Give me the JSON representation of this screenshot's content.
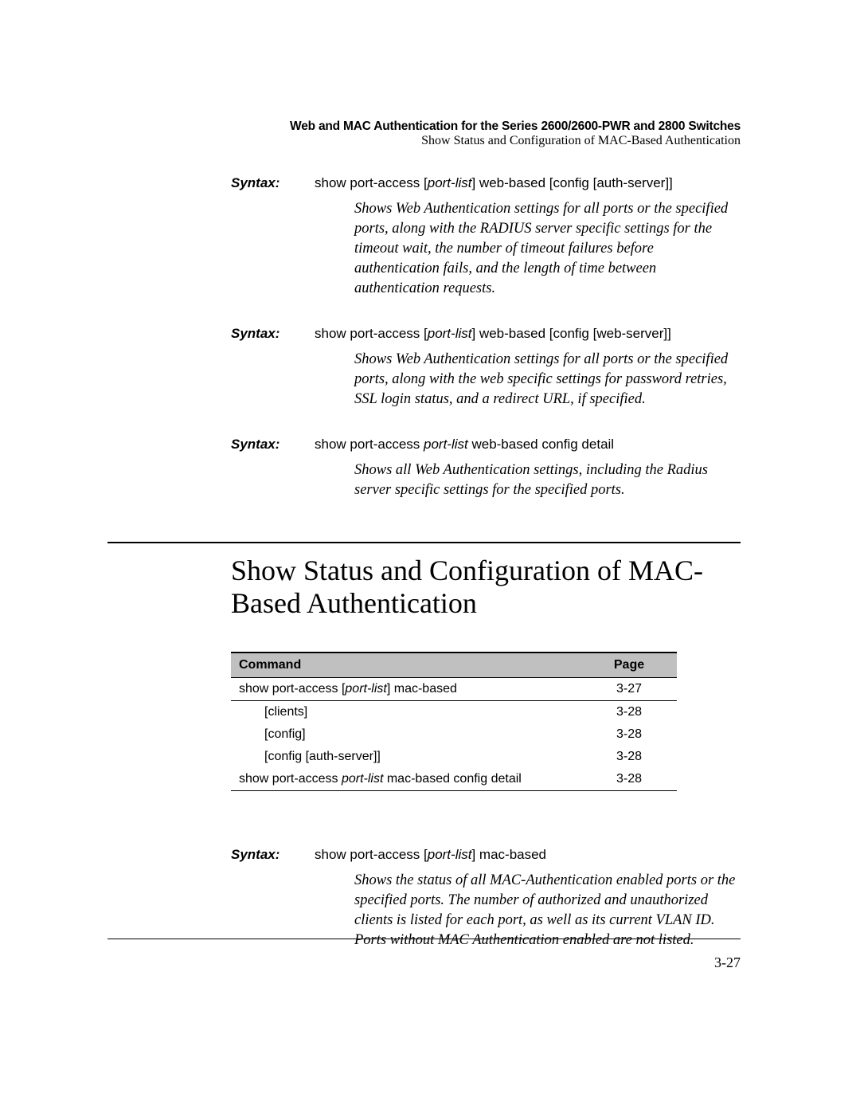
{
  "header": {
    "line1": "Web and MAC Authentication for the Series 2600/2600-PWR and 2800 Switches",
    "line2": "Show Status and Configuration of MAC-Based Authentication"
  },
  "syntax_label": "Syntax:",
  "syntax_blocks": [
    {
      "cmd_pre": "show port-access [",
      "cmd_ital": "port-list",
      "cmd_post": "] web-based [config [auth-server]]",
      "desc": "Shows Web Authentication settings for all ports or the specified ports, along with the RADIUS server specific settings for the timeout wait, the number of timeout failures before authentication fails, and the length of time between authentication requests."
    },
    {
      "cmd_pre": "show port-access [",
      "cmd_ital": "port-list",
      "cmd_post": "] web-based [config [web-server]]",
      "desc": "Shows Web Authentication settings for all ports or the specified ports, along with the web specific settings for password retries, SSL login status, and a redirect URL, if specified."
    },
    {
      "cmd_pre": "show port-access ",
      "cmd_ital": "port-list",
      "cmd_post": " web-based config detail",
      "desc": "Shows all Web Authentication settings, including the Radius server specific settings for the specified ports."
    }
  ],
  "section_title": "Show Status and Configuration of MAC-Based Authentication",
  "table": {
    "head_command": "Command",
    "head_page": "Page",
    "rows": [
      {
        "cmd_pre": "show port-access [",
        "cmd_ital": "port-list",
        "cmd_post": "] mac-based",
        "indent": false,
        "page": "3-27",
        "ruled": true
      },
      {
        "cmd_pre": "[clients]",
        "cmd_ital": "",
        "cmd_post": "",
        "indent": true,
        "page": "3-28",
        "ruled": false
      },
      {
        "cmd_pre": "[config]",
        "cmd_ital": "",
        "cmd_post": "",
        "indent": true,
        "page": "3-28",
        "ruled": false
      },
      {
        "cmd_pre": "[config [auth-server]]",
        "cmd_ital": "",
        "cmd_post": "",
        "indent": true,
        "page": "3-28",
        "ruled": false
      },
      {
        "cmd_pre": "show port-access ",
        "cmd_ital": "port-list",
        "cmd_post": " mac-based config detail",
        "indent": false,
        "page": "3-28",
        "ruled": true
      }
    ]
  },
  "syntax_tail": {
    "cmd_pre": "show port-access [",
    "cmd_ital": "port-list",
    "cmd_post": "] mac-based",
    "desc": "Shows the status of all MAC-Authentication enabled ports or the specified ports. The number of authorized and unauthorized clients is listed for each port, as well as its current VLAN ID. Ports without MAC Authenti­cation enabled are not listed."
  },
  "page_number": "3-27",
  "colors": {
    "table_header_bg": "#c0c0c0",
    "rule": "#000000",
    "text": "#000000",
    "background": "#ffffff"
  }
}
